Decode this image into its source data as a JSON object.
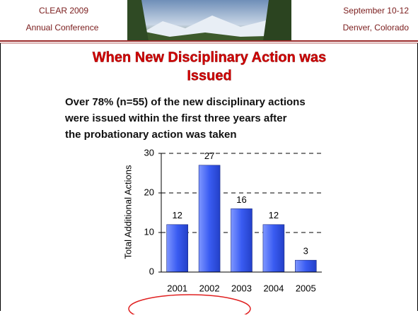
{
  "header": {
    "left_line1": "CLEAR 2009",
    "left_line2": "Annual Conference",
    "right_line1": "September 10-12",
    "right_line2": "Denver, Colorado"
  },
  "chart_data": {
    "type": "bar",
    "title_line1": "When New Disciplinary Action was",
    "title_line2": "Issued",
    "subtitle_line1": "Over 78% (n=55) of the new disciplinary actions",
    "subtitle_line2": "were issued within the first three years after",
    "subtitle_line3": "the probationary action was taken",
    "y_label": "Total Additional Actions",
    "categories": [
      "2001",
      "2002",
      "2003",
      "2004",
      "2005"
    ],
    "values": [
      12,
      27,
      16,
      12,
      3
    ],
    "color": "#4f6ef7",
    "ylim": [
      0,
      30
    ],
    "yticks": [
      0,
      10,
      20,
      30
    ],
    "grid": true
  }
}
